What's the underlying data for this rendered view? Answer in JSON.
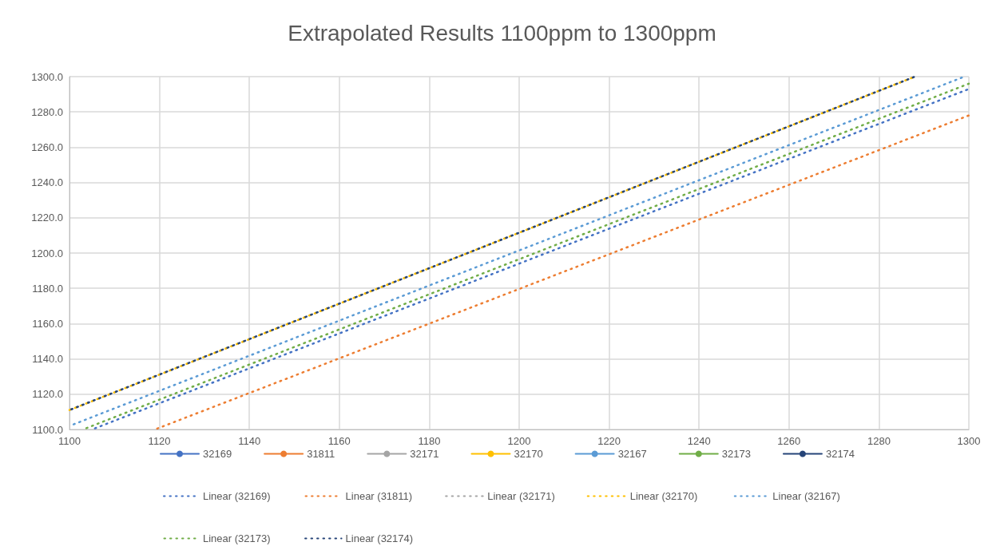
{
  "chart_data": {
    "type": "line",
    "title": "Extrapolated Results 1100ppm to 1300ppm",
    "xlim": [
      1100,
      1300
    ],
    "xticks": [
      1100,
      1120,
      1140,
      1160,
      1180,
      1200,
      1220,
      1240,
      1260,
      1280,
      1300
    ],
    "ylim": [
      1100,
      1300
    ],
    "yticks": [
      {
        "value": 1100,
        "label": "1100.0"
      },
      {
        "value": 1120,
        "label": "1120.0"
      },
      {
        "value": 1140,
        "label": "1140.0"
      },
      {
        "value": 1160,
        "label": "1160.0"
      },
      {
        "value": 1180,
        "label": "1180.0"
      },
      {
        "value": 1200,
        "label": "1200.0"
      },
      {
        "value": 1220,
        "label": "1220.0"
      },
      {
        "value": 1240,
        "label": "1240.0"
      },
      {
        "value": 1260,
        "label": "1260.0"
      },
      {
        "value": 1280,
        "label": "1280.0"
      },
      {
        "value": 1300,
        "label": "1300.0"
      }
    ],
    "grid": true,
    "legend": "bottom",
    "marker": "circle",
    "line_style": "solid",
    "series": [
      {
        "name": "32169",
        "color": "#4472c4"
      },
      {
        "name": "31811",
        "color": "#ed7d31"
      },
      {
        "name": "32171",
        "color": "#a5a5a5"
      },
      {
        "name": "32170",
        "color": "#ffc000"
      },
      {
        "name": "32167",
        "color": "#5b9bd5"
      },
      {
        "name": "32173",
        "color": "#70ad47"
      },
      {
        "name": "32174",
        "color": "#264478"
      },
      {
        "name": "Linear (32169)",
        "color": "#4472c4",
        "marker": "none",
        "line_style": "dotted",
        "x": [
          1105,
          1300
        ],
        "values": [
          1100,
          1293
        ]
      },
      {
        "name": "Linear (31811)",
        "color": "#ed7d31",
        "marker": "none",
        "line_style": "dotted",
        "x": [
          1119,
          1300
        ],
        "values": [
          1100,
          1278
        ]
      },
      {
        "name": "Linear (32171)",
        "color": "#a5a5a5",
        "marker": "none",
        "line_style": "dotted",
        "x": [
          1100,
          1288
        ],
        "values": [
          1111,
          1300
        ]
      },
      {
        "name": "Linear (32170)",
        "color": "#ffc000",
        "marker": "none",
        "line_style": "dotted",
        "x": [
          1100,
          1288
        ],
        "values": [
          1111,
          1300
        ]
      },
      {
        "name": "Linear (32167)",
        "color": "#5b9bd5",
        "marker": "none",
        "line_style": "dotted",
        "x": [
          1100,
          1299
        ],
        "values": [
          1102,
          1300
        ]
      },
      {
        "name": "Linear (32173)",
        "color": "#70ad47",
        "marker": "none",
        "line_style": "dotted",
        "x": [
          1103,
          1300
        ],
        "values": [
          1100,
          1296
        ]
      },
      {
        "name": "Linear (32174)",
        "color": "#264478",
        "marker": "none",
        "line_style": "dotted",
        "x": [
          1100,
          1288
        ],
        "values": [
          1111,
          1300
        ]
      }
    ]
  }
}
